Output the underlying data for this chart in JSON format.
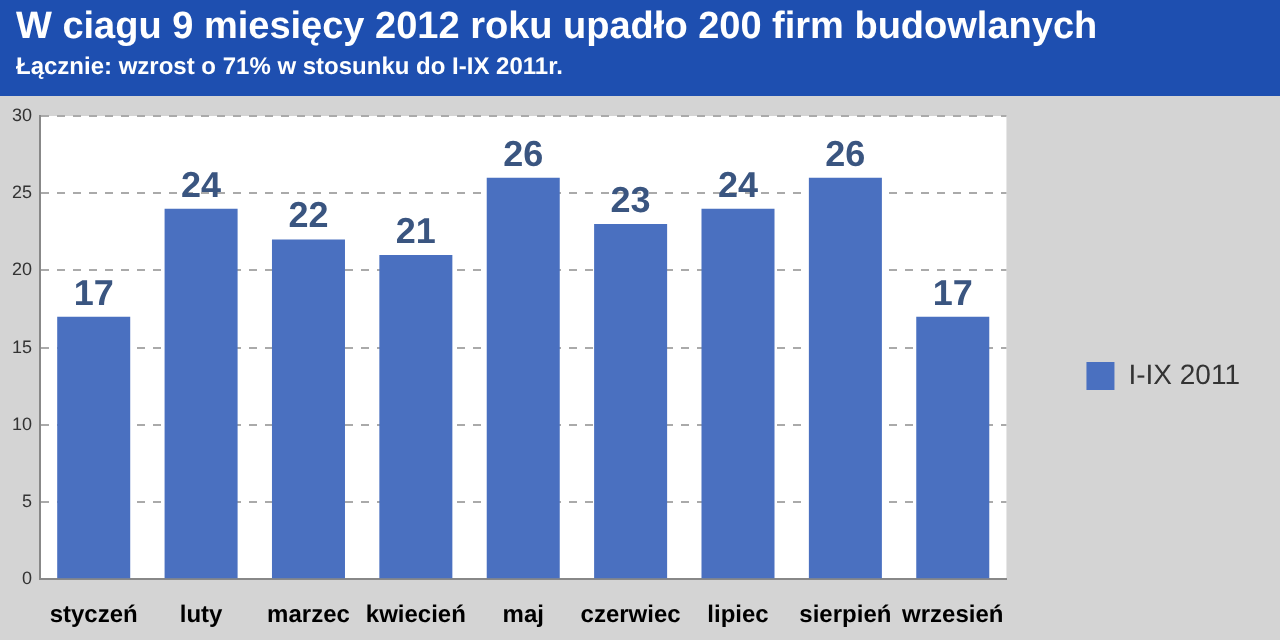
{
  "chart_data": {
    "type": "bar",
    "title": "W ciagu 9 miesięcy 2012 roku upadło 200 firm budowlanych",
    "subtitle": "Łącznie: wzrost o 71% w stosunku do I-IX 2011r.",
    "categories": [
      "styczeń",
      "luty",
      "marzec",
      "kwiecień",
      "maj",
      "czerwiec",
      "lipiec",
      "sierpień",
      "wrzesień"
    ],
    "series": [
      {
        "name": "I-IX 2011",
        "color": "#4a70c0",
        "values": [
          17,
          24,
          22,
          21,
          26,
          23,
          24,
          26,
          17
        ]
      }
    ],
    "ylim": [
      0,
      30
    ],
    "yticks": [
      0,
      5,
      10,
      15,
      20,
      25,
      30
    ],
    "grid": "y",
    "legend": "right",
    "data_labels": true
  }
}
